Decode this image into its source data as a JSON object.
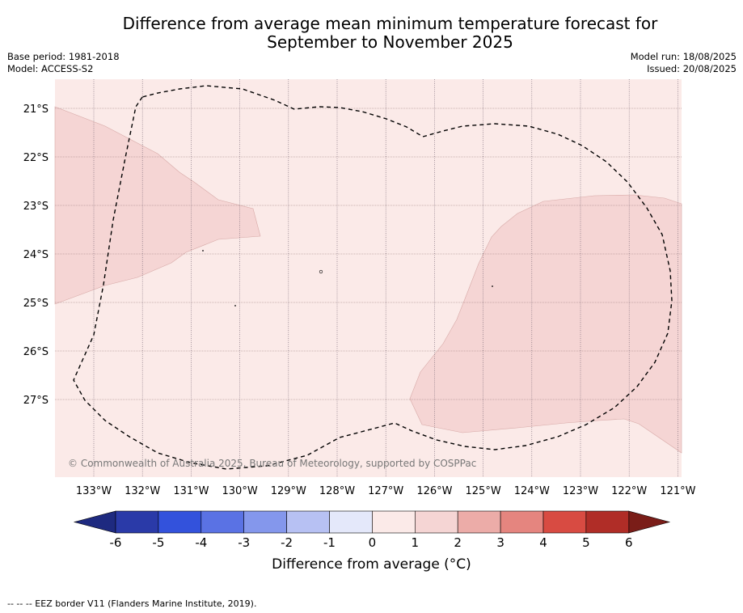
{
  "header": {
    "title_line1": "Difference from average mean minimum temperature forecast for",
    "title_line2": "September to November 2025",
    "base_period": "Base period: 1981-2018",
    "model": "Model: ACCESS-S2",
    "model_run": "Model run: 18/08/2025",
    "issued": "Issued: 20/08/2025"
  },
  "map": {
    "lat_labels": [
      "21°S",
      "22°S",
      "23°S",
      "24°S",
      "25°S",
      "26°S",
      "27°S"
    ],
    "lon_labels": [
      "133°W",
      "132°W",
      "131°W",
      "130°W",
      "129°W",
      "128°W",
      "127°W",
      "126°W",
      "125°W",
      "124°W",
      "123°W",
      "122°W",
      "121°W"
    ],
    "copyright": "© Commonwealth of Australia 2025, Bureau of Meteorology, supported by COSPPac",
    "background_color": "#fbeae8",
    "anomaly_color": "#f5d5d4",
    "eez_border_style": "dashed"
  },
  "colorbar": {
    "ticks": [
      "-6",
      "-5",
      "-4",
      "-3",
      "-2",
      "-1",
      "0",
      "1",
      "2",
      "3",
      "4",
      "5",
      "6"
    ],
    "colors": [
      "#2a3aa8",
      "#3352dc",
      "#5a72e4",
      "#8497ec",
      "#b7c1f3",
      "#e4e8fa",
      "#fbeae8",
      "#f5d5d4",
      "#ecaca8",
      "#e5857f",
      "#d84b42",
      "#b02d27"
    ],
    "low_extend_color": "#1e2a80",
    "high_extend_color": "#7a1d18",
    "label": "Difference from average (°C)"
  },
  "footer": {
    "legend": "--  --  -- EEZ border V11 (Flanders Marine Institute, 2019)."
  }
}
